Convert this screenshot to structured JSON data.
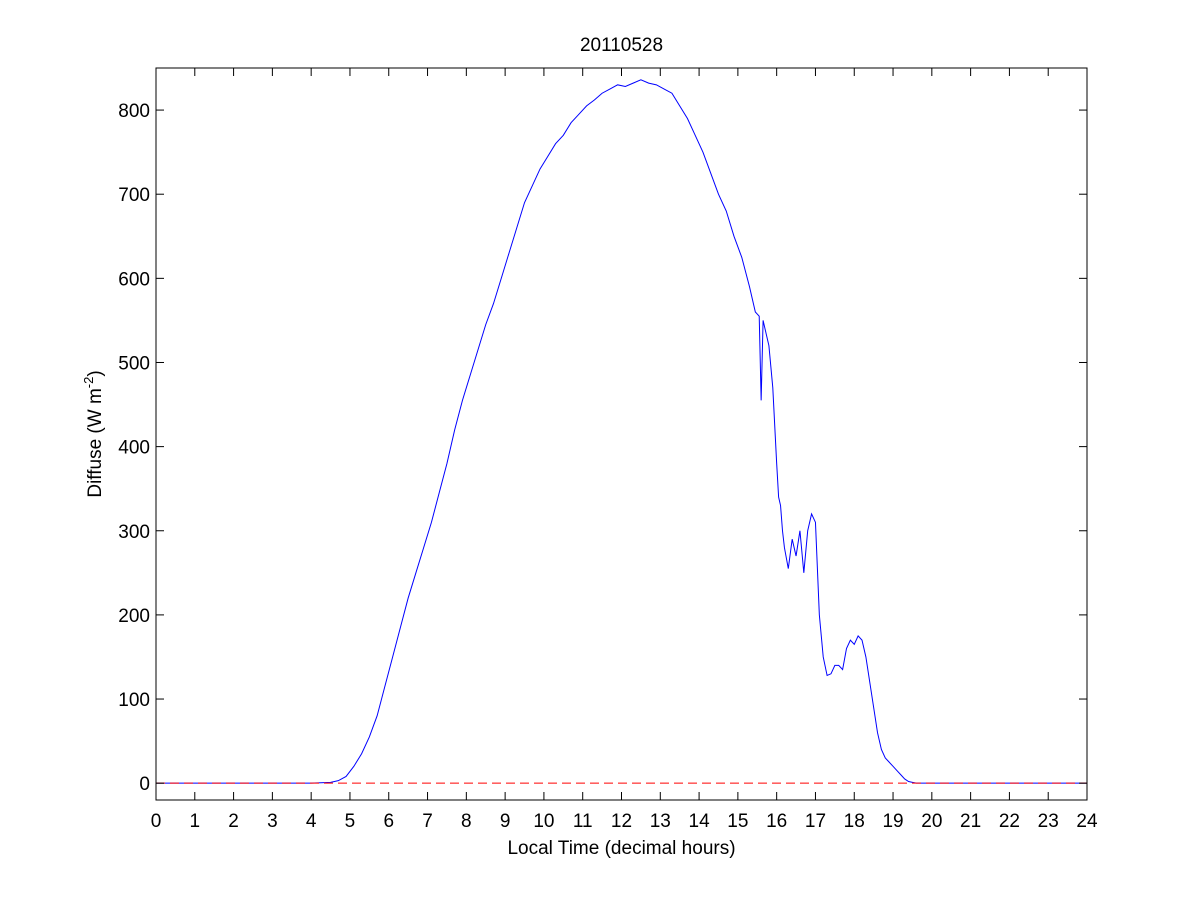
{
  "chart_data": {
    "type": "line",
    "title": "20110528",
    "xlabel": "Local Time (decimal hours)",
    "ylabel": {
      "prefix": "Diffuse (W m",
      "superscript": "-2",
      "suffix": ")"
    },
    "xlim": [
      0,
      24
    ],
    "ylim": [
      -20,
      850
    ],
    "x_ticks": [
      0,
      1,
      2,
      3,
      4,
      5,
      6,
      7,
      8,
      9,
      10,
      11,
      12,
      13,
      14,
      15,
      16,
      17,
      18,
      19,
      20,
      21,
      22,
      23,
      24
    ],
    "y_ticks": [
      0,
      100,
      200,
      300,
      400,
      500,
      600,
      700,
      800
    ],
    "grid": false,
    "series": [
      {
        "color": "#0000ff",
        "style": "solid",
        "x": [
          0,
          1,
          2,
          3,
          4,
          4.5,
          4.7,
          4.9,
          5.1,
          5.3,
          5.5,
          5.7,
          5.9,
          6.1,
          6.3,
          6.5,
          6.7,
          6.9,
          7.1,
          7.3,
          7.5,
          7.7,
          7.9,
          8.1,
          8.3,
          8.5,
          8.7,
          8.9,
          9.1,
          9.3,
          9.5,
          9.7,
          9.9,
          10.1,
          10.3,
          10.5,
          10.7,
          10.9,
          11.1,
          11.3,
          11.5,
          11.7,
          11.9,
          12.1,
          12.3,
          12.5,
          12.7,
          12.9,
          13.1,
          13.3,
          13.5,
          13.7,
          13.9,
          14.1,
          14.3,
          14.5,
          14.7,
          14.9,
          15.1,
          15.3,
          15.45,
          15.55,
          15.6,
          15.65,
          15.7,
          15.8,
          15.9,
          16.0,
          16.05,
          16.1,
          16.15,
          16.2,
          16.3,
          16.4,
          16.5,
          16.6,
          16.7,
          16.8,
          16.9,
          17.0,
          17.1,
          17.2,
          17.3,
          17.4,
          17.5,
          17.6,
          17.7,
          17.8,
          17.9,
          18.0,
          18.1,
          18.2,
          18.3,
          18.4,
          18.5,
          18.6,
          18.7,
          18.8,
          18.9,
          19.0,
          19.1,
          19.2,
          19.3,
          19.4,
          19.5,
          19.6,
          19.8,
          20.0,
          21,
          22,
          23,
          24
        ],
        "y": [
          0,
          0,
          0,
          0,
          0,
          1,
          3,
          8,
          20,
          35,
          55,
          80,
          115,
          150,
          185,
          220,
          250,
          280,
          310,
          345,
          380,
          420,
          455,
          485,
          515,
          545,
          570,
          600,
          630,
          660,
          690,
          710,
          730,
          745,
          760,
          770,
          785,
          795,
          805,
          812,
          820,
          825,
          830,
          828,
          832,
          836,
          832,
          830,
          825,
          820,
          805,
          790,
          770,
          750,
          725,
          700,
          680,
          650,
          625,
          590,
          560,
          555,
          455,
          550,
          540,
          520,
          470,
          380,
          340,
          330,
          300,
          280,
          255,
          290,
          270,
          300,
          250,
          300,
          320,
          310,
          200,
          150,
          128,
          130,
          140,
          140,
          135,
          160,
          170,
          165,
          175,
          170,
          150,
          120,
          90,
          60,
          40,
          30,
          25,
          20,
          15,
          10,
          5,
          2,
          1,
          0,
          0,
          0,
          0,
          0,
          0,
          0
        ]
      },
      {
        "color": "#ff0000",
        "style": "dashed",
        "x": [
          0,
          24
        ],
        "y": [
          0,
          0
        ]
      }
    ]
  }
}
